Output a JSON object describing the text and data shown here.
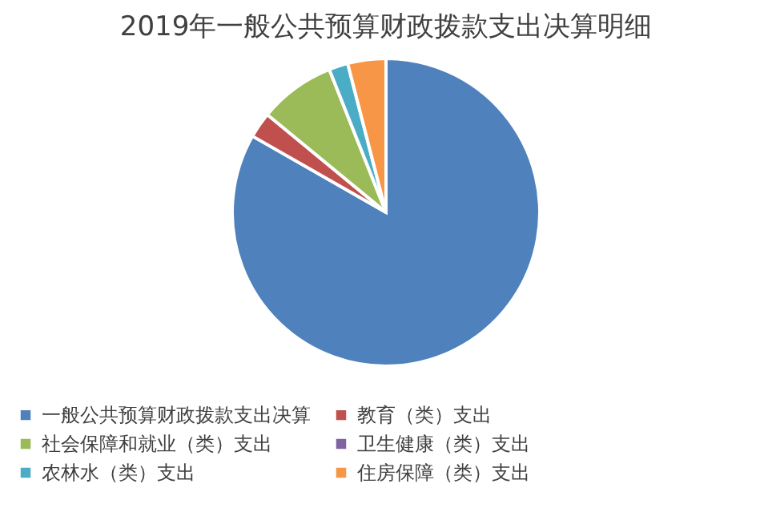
{
  "chart_data": {
    "type": "pie",
    "title": "2019年一般公共预算财政拨款支出决算明细",
    "categories": [
      "一般公共预算财政拨款支出决算",
      "教育（类）支出",
      "社会保障和就业（类）支出",
      "卫生健康（类）支出",
      "农林水（类）支出",
      "住房保障（类）支出"
    ],
    "values": [
      83,
      2.7,
      8,
      null,
      2,
      4
    ],
    "colors": [
      "#4f81bd",
      "#c0504d",
      "#9bbb59",
      "#8064a2",
      "#4bacc6",
      "#f79646"
    ],
    "legend": "bottom"
  }
}
